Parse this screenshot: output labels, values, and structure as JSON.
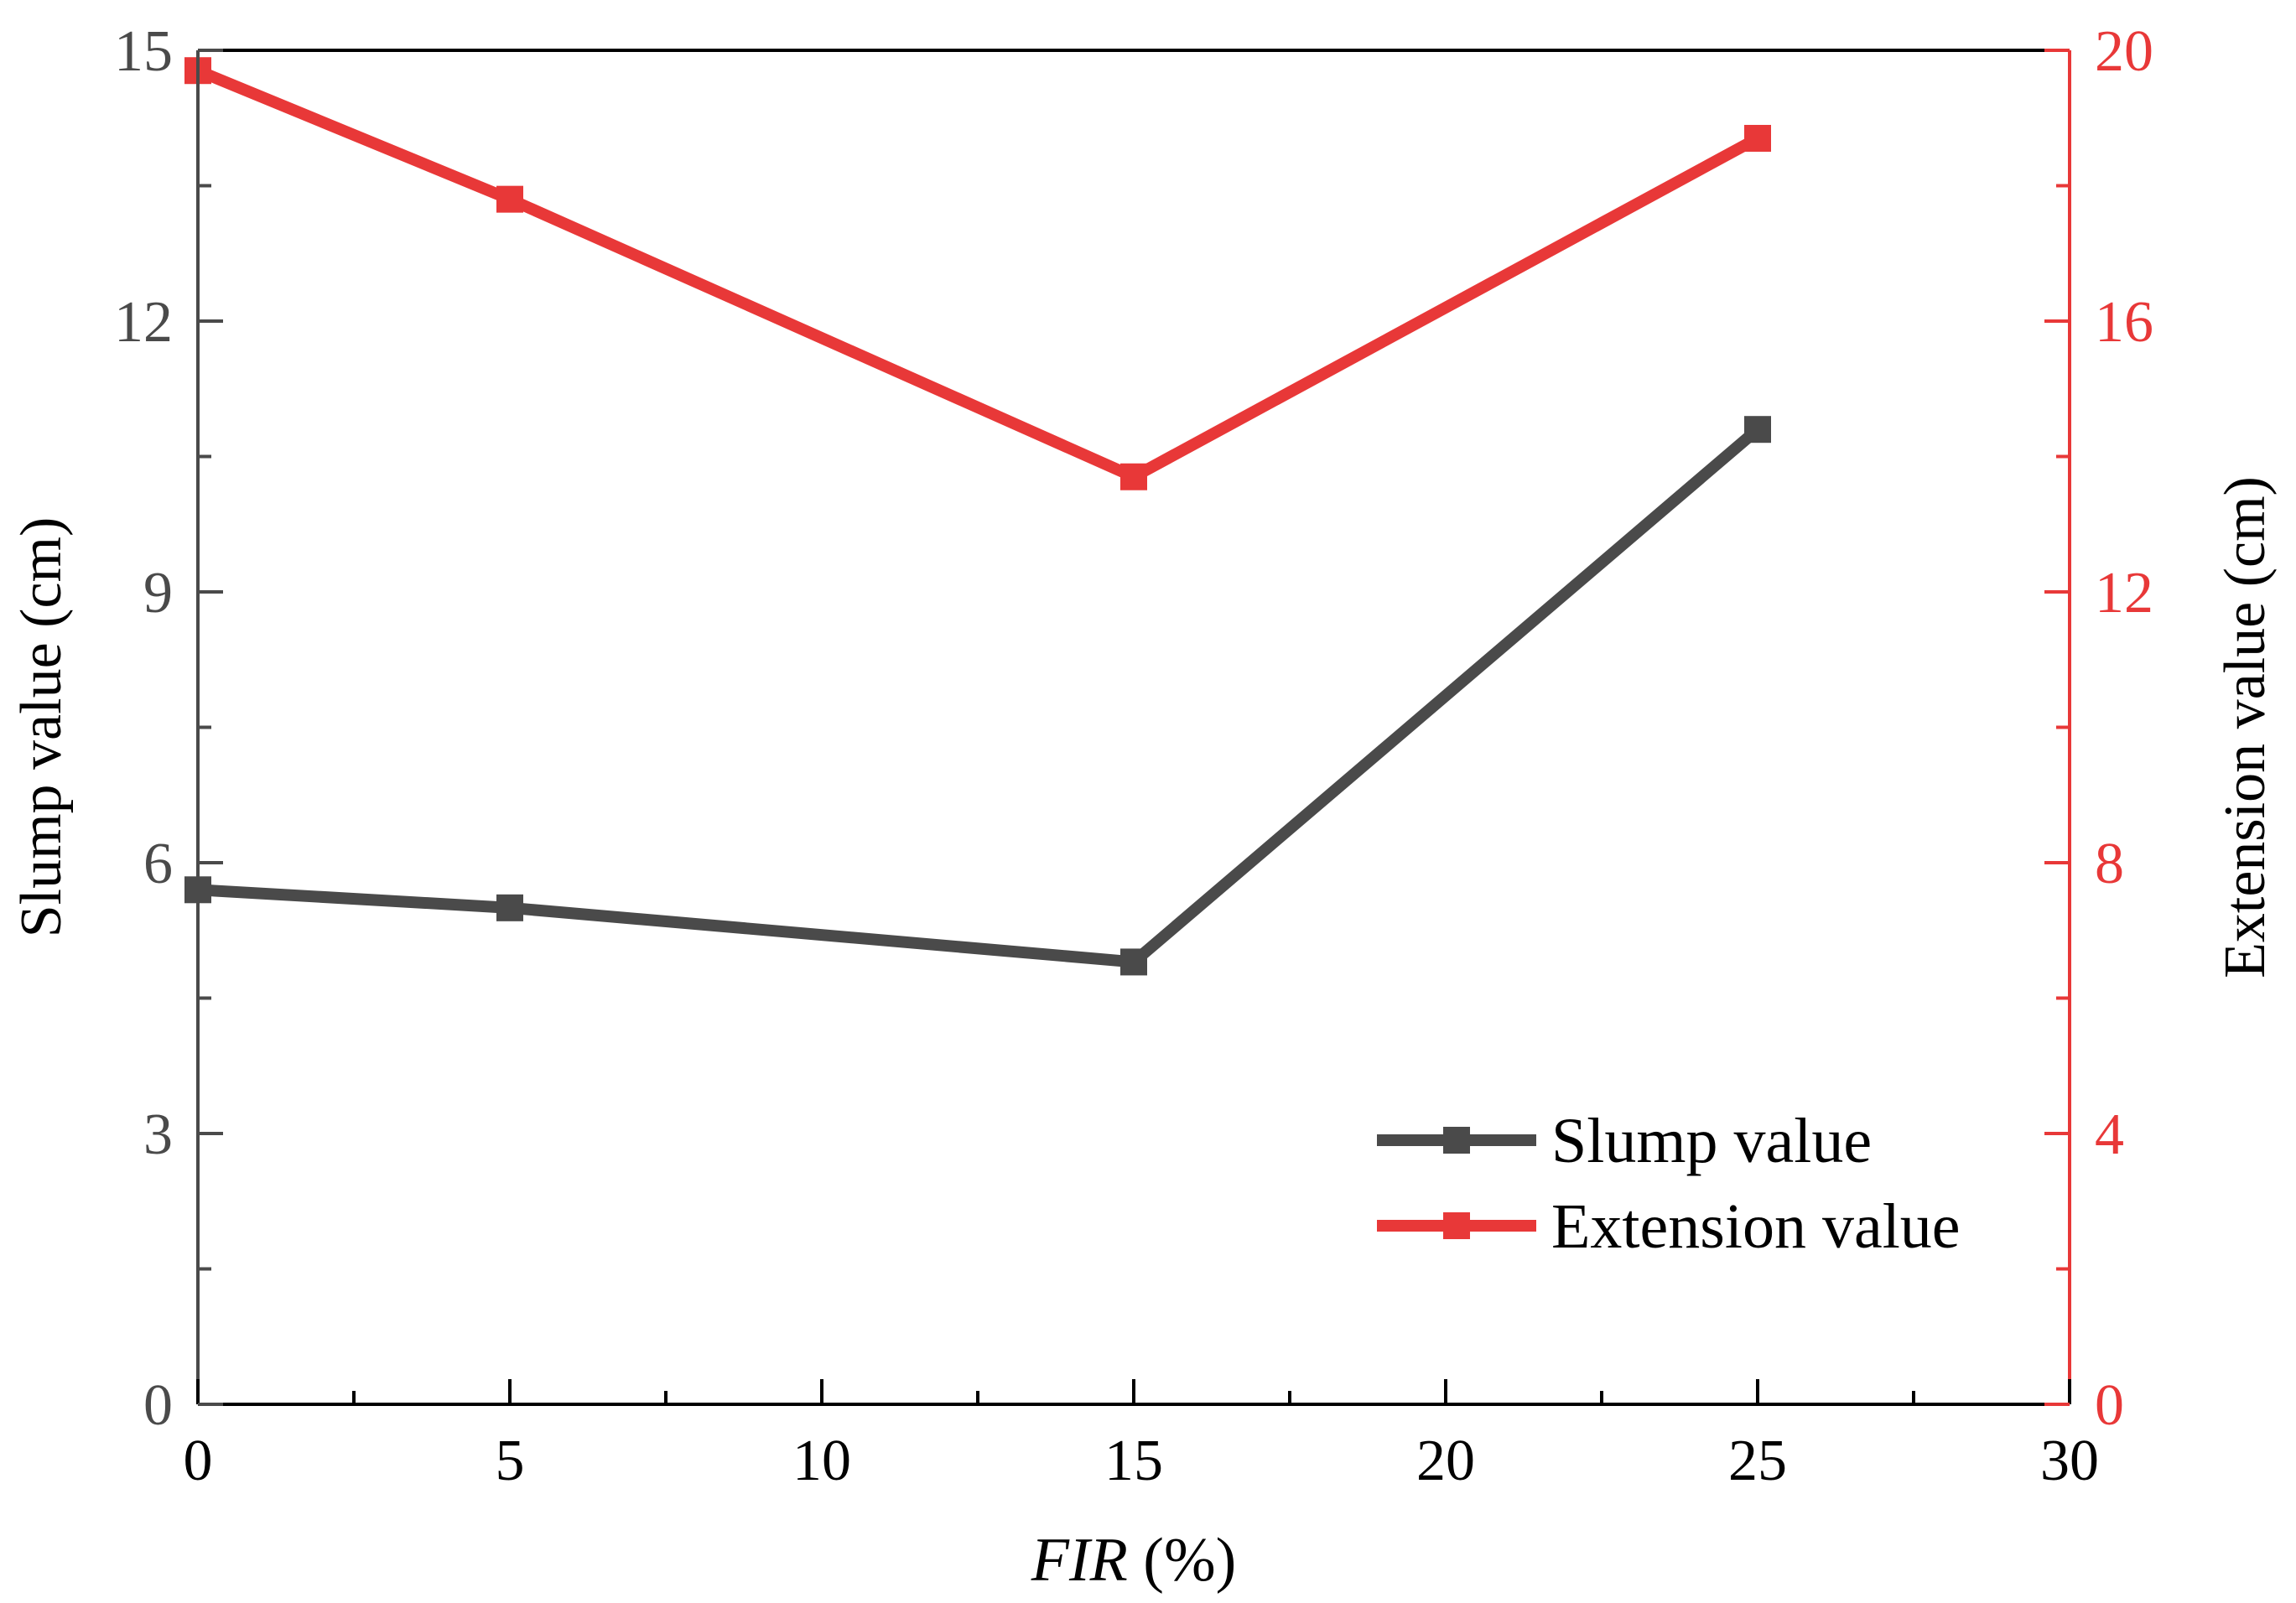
{
  "chart_data": {
    "type": "line",
    "xlabel_italic": "FIR",
    "xlabel_rest": " (%)",
    "ylabel_left": "Slump value (cm)",
    "ylabel_right": "Extension value (cm)",
    "xlim": [
      0,
      30
    ],
    "ylim_left": [
      0,
      15
    ],
    "ylim_right": [
      0,
      20
    ],
    "x_ticks": [
      0,
      5,
      10,
      15,
      20,
      25,
      30
    ],
    "y_left_ticks": [
      0,
      3,
      6,
      9,
      12,
      15
    ],
    "y_right_ticks": [
      0,
      4,
      8,
      12,
      16,
      20
    ],
    "grid": false,
    "legend_position": "bottom-right",
    "series": [
      {
        "name": "Slump value",
        "axis": "left",
        "color": "#4a4a4a",
        "x": [
          0,
          5,
          15,
          25
        ],
        "values": [
          5.7,
          5.5,
          4.9,
          10.8
        ]
      },
      {
        "name": "Extension value",
        "axis": "right",
        "color": "#e83838",
        "x": [
          0,
          5,
          15,
          25
        ],
        "values": [
          19.7,
          17.8,
          13.7,
          18.7
        ]
      }
    ],
    "colors": {
      "left_axis": "#4a4a4a",
      "right_axis": "#e83838",
      "frame": "#000000"
    }
  }
}
